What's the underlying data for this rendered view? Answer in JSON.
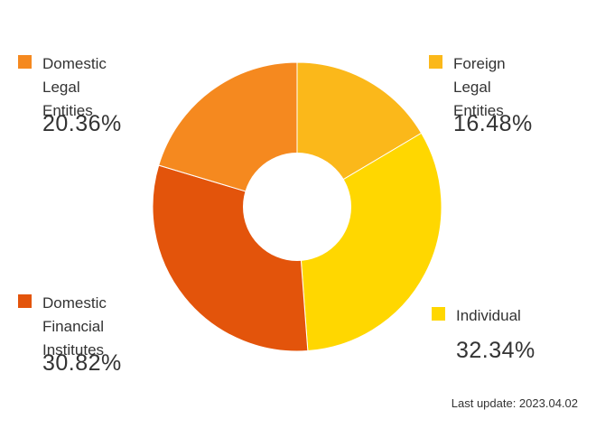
{
  "chart_data": {
    "type": "pie",
    "donut": true,
    "start": "top, clockwise",
    "slices": [
      {
        "label_lines": [
          "Foreign",
          "Legal Entities"
        ],
        "value": 16.48,
        "value_text": "16.48%",
        "color": "#FBB81A"
      },
      {
        "label_lines": [
          "Individual"
        ],
        "value": 32.34,
        "value_text": "32.34%",
        "color": "#FFD700"
      },
      {
        "label_lines": [
          "Domestic",
          "Financial Institutes"
        ],
        "value": 30.82,
        "value_text": "30.82%",
        "color": "#E3540B"
      },
      {
        "label_lines": [
          "Domestic",
          "Legal Entities"
        ],
        "value": 20.36,
        "value_text": "20.36%",
        "color": "#F5891F"
      }
    ]
  },
  "footnote": "Last update: 2023.04.02"
}
